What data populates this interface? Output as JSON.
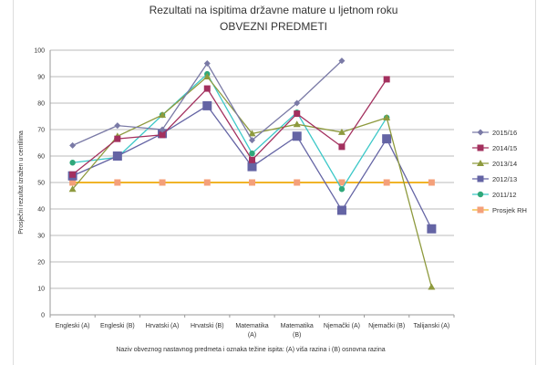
{
  "chart_data": {
    "type": "line",
    "title": "Rezultati na ispitima državne mature u ljetnom roku",
    "subtitle": "OBVEZNI PREDMETI",
    "xlabel": "Naziv obveznog nastavnog predmeta i oznaka težine ispita: (A) viša razina i (B) osnovna razina",
    "ylabel": "Prosječni rezultat izražen u centilima",
    "ylim": [
      0,
      100
    ],
    "yticks": [
      0,
      10,
      20,
      30,
      40,
      50,
      60,
      70,
      80,
      90,
      100
    ],
    "grid": true,
    "legend_position": "right",
    "categories": [
      [
        "Engleski (A)"
      ],
      [
        "Engleski (B)"
      ],
      [
        "Hrvatski (A)"
      ],
      [
        "Hrvatski (B)"
      ],
      [
        "Matematika",
        "(A)"
      ],
      [
        "Matematika",
        "(B)"
      ],
      [
        "Njemački (A)"
      ],
      [
        "Njemački (B)"
      ],
      [
        "Talijanski (A)"
      ]
    ],
    "series": [
      {
        "name": "2015/16",
        "color": "#7a7aa6",
        "marker": "diamond",
        "values": [
          64,
          71.5,
          70,
          95,
          66,
          80,
          96,
          null,
          null
        ]
      },
      {
        "name": "2014/15",
        "color": "#a3305e",
        "marker": "square",
        "values": [
          53,
          66.5,
          68,
          85.5,
          58.5,
          76,
          63.5,
          89,
          null
        ]
      },
      {
        "name": "2013/14",
        "color": "#8e9a3e",
        "marker": "triangle",
        "values": [
          47.5,
          67.5,
          75.5,
          90,
          68.5,
          72,
          69,
          74.5,
          10.5
        ]
      },
      {
        "name": "2012/13",
        "color": "#6464a4",
        "marker": "bigsquare",
        "values": [
          52.5,
          60,
          68.5,
          79,
          56,
          67.5,
          39.5,
          66.5,
          32.5
        ]
      },
      {
        "name": "2011/12",
        "color": "#3cc8c8",
        "marker": "circle",
        "markerColor": "#2fa87a",
        "values": [
          57.5,
          59.5,
          75.5,
          91,
          61,
          76.5,
          47.5,
          74.5,
          null
        ]
      },
      {
        "name": "Prosjek RH",
        "color": "#f0b428",
        "marker": "square",
        "markerColor": "#f4a07a",
        "values": [
          50,
          50,
          50,
          50,
          50,
          50,
          50,
          50,
          50
        ]
      }
    ]
  }
}
